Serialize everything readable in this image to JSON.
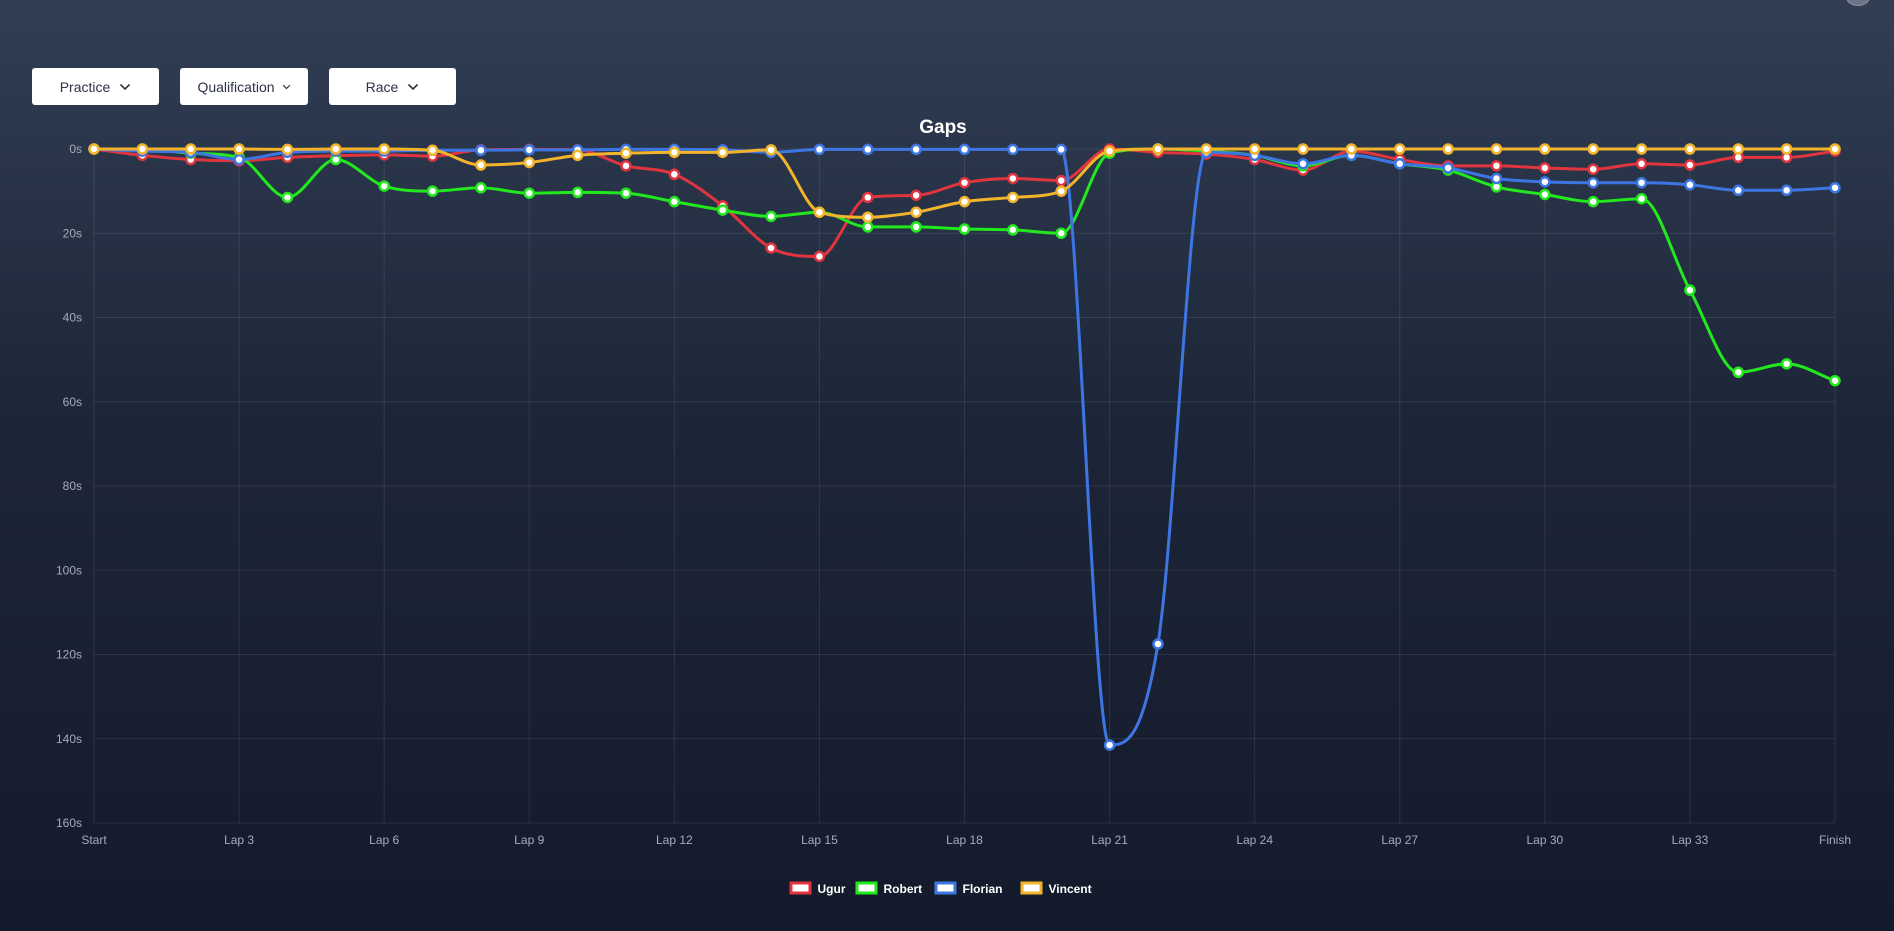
{
  "tabs": {
    "practice": "Practice",
    "qualification": "Qualification",
    "race": "Race"
  },
  "chart_data": {
    "type": "line",
    "title": "Gaps",
    "xlabel": "",
    "ylabel": "",
    "x_labels": [
      "Start",
      "Lap 3",
      "Lap 6",
      "Lap 9",
      "Lap 12",
      "Lap 15",
      "Lap 18",
      "Lap 21",
      "Lap 24",
      "Lap 27",
      "Lap 30",
      "Lap 33",
      "Finish"
    ],
    "y_ticks": [
      "0s",
      "20s",
      "40s",
      "60s",
      "80s",
      "100s",
      "120s",
      "140s",
      "160s"
    ],
    "ylim": [
      0,
      160
    ],
    "y_reversed": true,
    "grid": true,
    "legend_position": "bottom",
    "points_per_series": 37,
    "series": [
      {
        "name": "Ugur",
        "color": "#e0353f",
        "values": [
          0,
          1.5,
          2.5,
          2.8,
          2.0,
          1.6,
          1.4,
          1.7,
          0.2,
          0.1,
          0.2,
          4.0,
          6.0,
          13.5,
          23.5,
          25.5,
          11.5,
          11.0,
          8.0,
          7.0,
          7.5,
          0,
          0.8,
          1.2,
          2.5,
          5.0,
          0.5,
          2.5,
          4.0,
          4.0,
          4.5,
          4.8,
          3.5,
          3.8,
          2.0,
          2.0,
          0.5
        ]
      },
      {
        "name": "Robert",
        "color": "#22e81e",
        "values": [
          0,
          0,
          1.0,
          2.0,
          11.5,
          2.5,
          8.8,
          10.0,
          9.2,
          10.5,
          10.3,
          10.5,
          12.5,
          14.5,
          16.0,
          15.0,
          18.5,
          18.5,
          19.0,
          19.2,
          20.0,
          1.0,
          0,
          0.5,
          1.5,
          4.0,
          1.5,
          3.5,
          5.0,
          9.0,
          10.8,
          12.5,
          11.8,
          33.5,
          53.0,
          51.0,
          55.0
        ]
      },
      {
        "name": "Florian",
        "color": "#3d76e3",
        "values": [
          0,
          0.5,
          0.8,
          2.5,
          0.8,
          0.5,
          0.5,
          0.3,
          0.3,
          0.2,
          0.2,
          0.1,
          0.1,
          0.2,
          0.8,
          0.1,
          0.1,
          0.1,
          0.1,
          0.1,
          0.1,
          141.5,
          117.5,
          0.8,
          1.5,
          3.5,
          1.5,
          3.5,
          4.5,
          7.0,
          7.8,
          8.0,
          8.0,
          8.5,
          9.8,
          9.8,
          9.2
        ]
      },
      {
        "name": "Vincent",
        "color": "#f3b42b",
        "values": [
          0,
          0,
          0,
          0,
          0.1,
          0,
          0,
          0.3,
          3.8,
          3.2,
          1.5,
          1.0,
          0.8,
          0.8,
          0.2,
          15.0,
          16.2,
          15.0,
          12.5,
          11.5,
          10.0,
          0.5,
          0,
          0,
          0,
          0,
          0,
          0,
          0,
          0,
          0,
          0,
          0,
          0,
          0,
          0,
          0
        ]
      }
    ]
  }
}
